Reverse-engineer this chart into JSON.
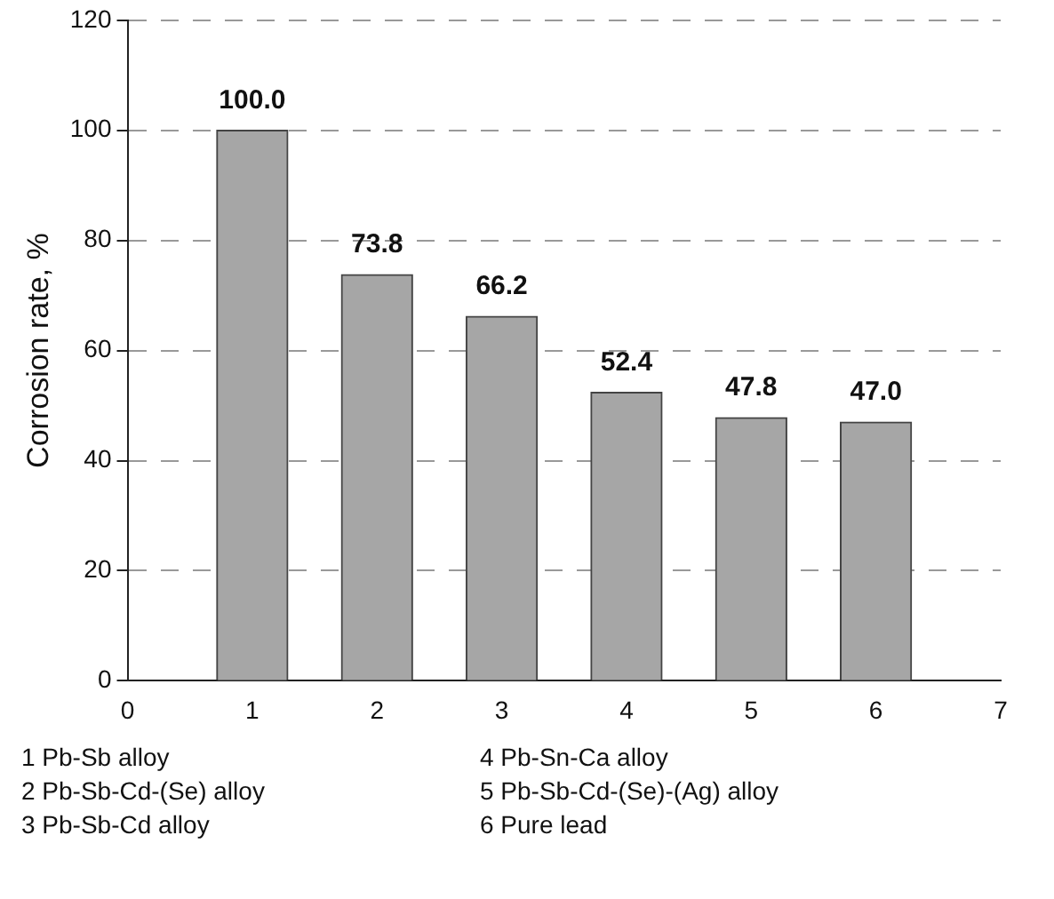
{
  "chart_data": {
    "type": "bar",
    "ylabel": "Corrosion rate, %",
    "x": [
      1,
      2,
      3,
      4,
      5,
      6
    ],
    "values": [
      100.0,
      73.8,
      66.2,
      52.4,
      47.8,
      47.0
    ],
    "value_labels": [
      "100.0",
      "73.8",
      "66.2",
      "52.4",
      "47.8",
      "47.0"
    ],
    "color": "#a6a6a6",
    "xlim": [
      0,
      7
    ],
    "xticks": [
      0,
      1,
      2,
      3,
      4,
      5,
      6,
      7
    ],
    "ylim": [
      0,
      120
    ],
    "yticks": [
      0,
      20,
      40,
      60,
      80,
      100,
      120
    ],
    "grid": "y",
    "legend": false,
    "annotations": [
      "1 Pb-Sb alloy",
      "2 Pb-Sb-Cd-(Se) alloy",
      "3 Pb-Sb-Cd alloy",
      "4 Pb-Sn-Ca alloy",
      "5 Pb-Sb-Cd-(Se)-(Ag) alloy",
      "6 Pure lead"
    ]
  }
}
